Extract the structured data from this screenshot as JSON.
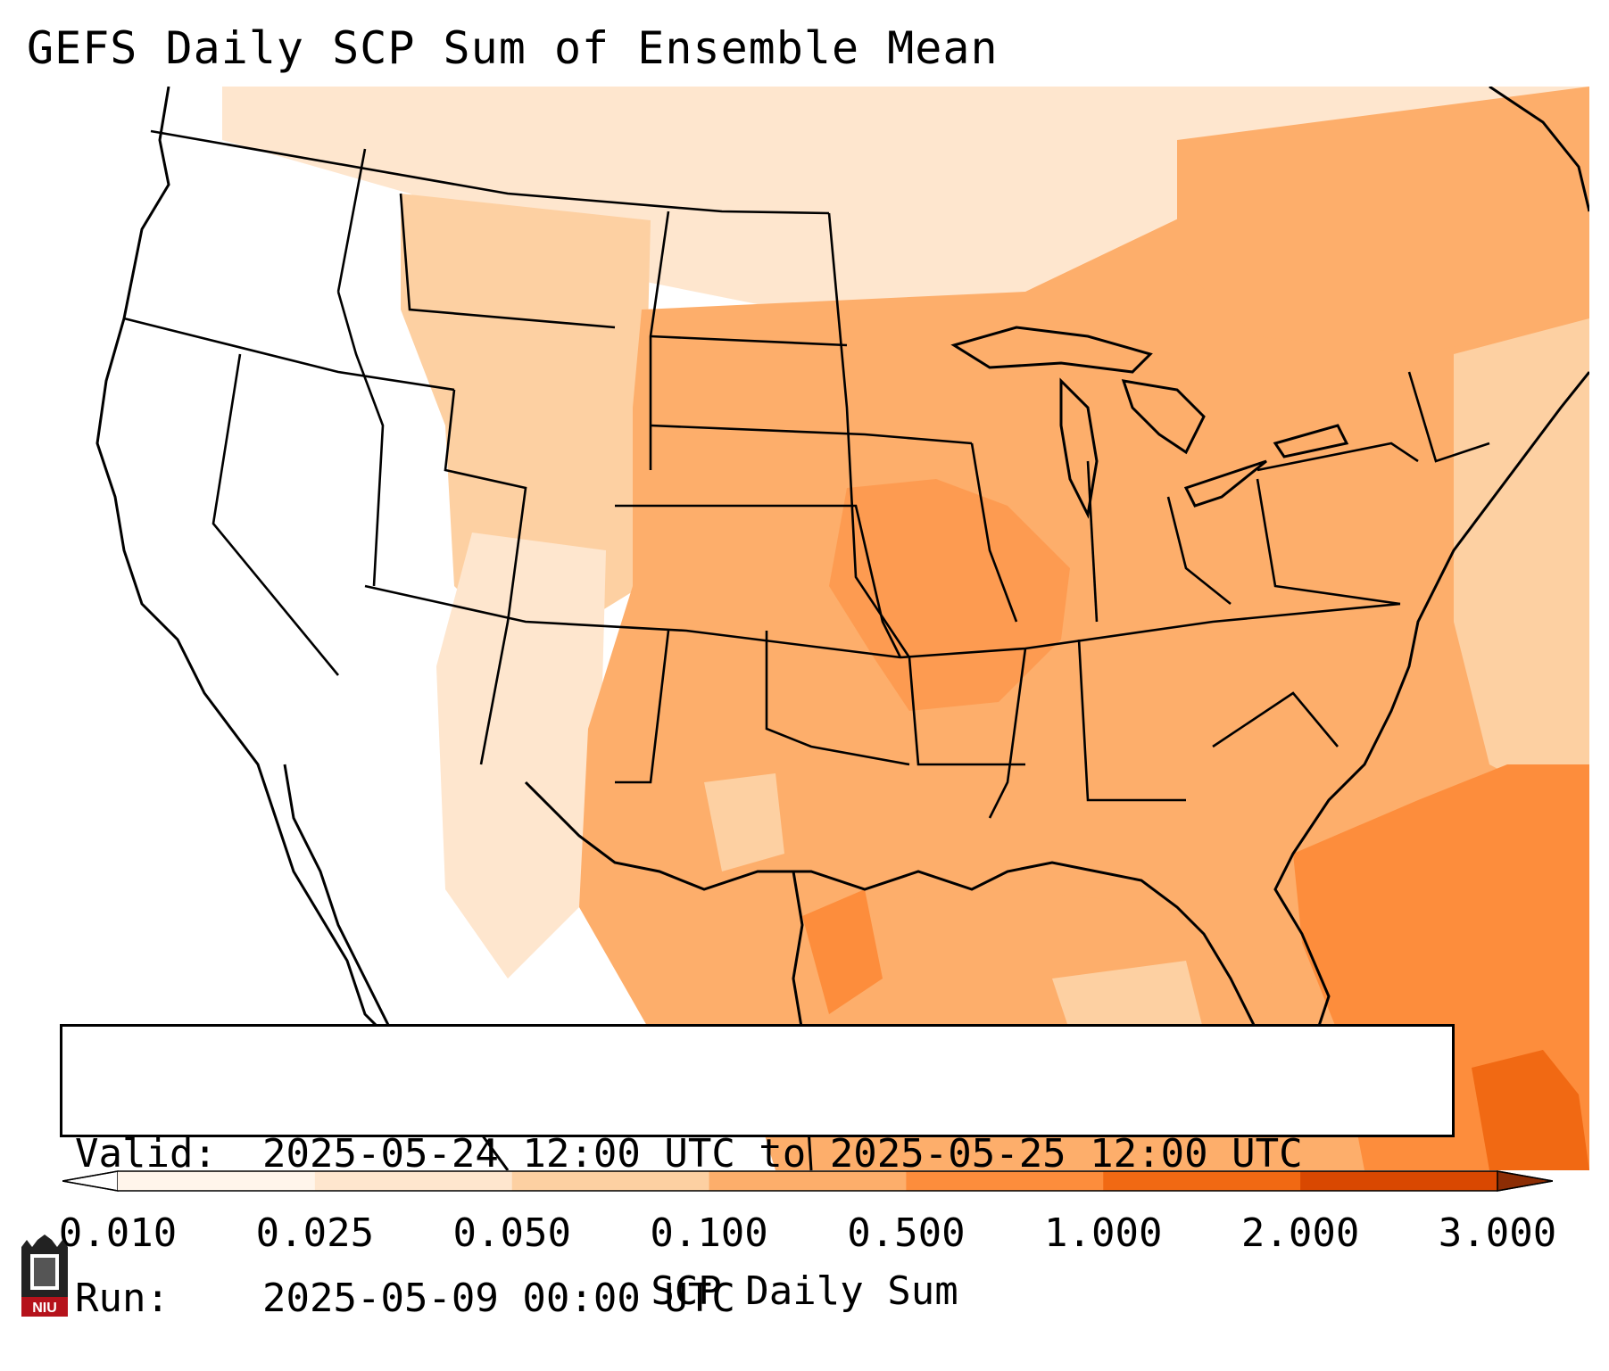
{
  "title": "GEFS Daily SCP Sum of Ensemble Mean",
  "info": {
    "valid_key": "Valid:",
    "valid_value": "2025-05-24 12:00 UTC to 2025-05-25 12:00 UTC",
    "run_key": "Run:",
    "run_value": "2025-05-09 00:00 UTC"
  },
  "colorbar": {
    "label": "SCP Daily Sum",
    "ticks": [
      "0.010",
      "0.025",
      "0.050",
      "0.100",
      "0.500",
      "1.000",
      "2.000",
      "3.000"
    ],
    "colors": [
      "#fff5eb",
      "#fee6ce",
      "#fdd0a2",
      "#fdae6b",
      "#fd8d3c",
      "#f16913",
      "#d94801"
    ],
    "under_color": "#ffffff",
    "over_color": "#8c2d04"
  },
  "map": {
    "region": "CONUS",
    "boundaries": "state borders and coastlines",
    "field": "SCP daily sum shaded",
    "land_fill": "#fdae6b",
    "gulf_fill": "#fdae6b",
    "atlantic_fill": "#fd8d3c"
  },
  "logo": {
    "text": "NIU",
    "color": "#b5121b"
  }
}
